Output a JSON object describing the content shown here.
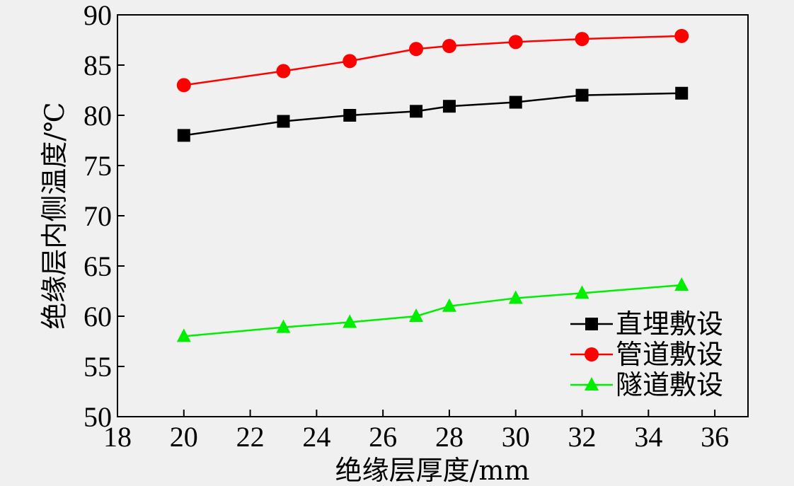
{
  "chart_data": {
    "type": "line",
    "title": "",
    "xlabel": "绝缘层厚度/mm",
    "ylabel": "绝缘层内侧温度/℃",
    "xlim": [
      18,
      37
    ],
    "ylim": [
      50,
      90
    ],
    "xticks": [
      18,
      20,
      22,
      24,
      26,
      28,
      30,
      32,
      34,
      36
    ],
    "yticks": [
      50,
      55,
      60,
      65,
      70,
      75,
      80,
      85,
      90
    ],
    "grid": false,
    "legend_position": "bottom-right",
    "x": [
      20,
      23,
      25,
      27,
      28,
      30,
      32,
      35
    ],
    "series": [
      {
        "name": "直埋敷设",
        "marker": "square",
        "color": "#000000",
        "values": [
          78.0,
          79.4,
          80.0,
          80.4,
          80.9,
          81.3,
          82.0,
          82.2
        ]
      },
      {
        "name": "管道敷设",
        "marker": "circle",
        "color": "#ff0000",
        "values": [
          83.0,
          84.4,
          85.4,
          86.6,
          86.9,
          87.3,
          87.6,
          87.9
        ]
      },
      {
        "name": "隧道敷设",
        "marker": "triangle",
        "color": "#00ee00",
        "values": [
          58.0,
          58.9,
          59.4,
          60.0,
          61.0,
          61.8,
          62.3,
          63.1
        ]
      }
    ]
  }
}
